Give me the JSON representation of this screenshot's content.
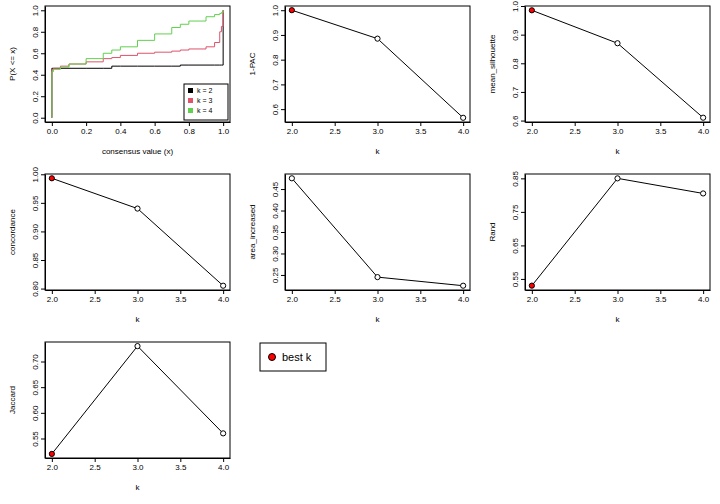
{
  "chart_data": [
    {
      "type": "line",
      "line_style": "step",
      "xlabel": "consensus value (x)",
      "ylabel": "P(X <= x)",
      "x": [
        0,
        0,
        0.01,
        0.05,
        0.1,
        0.2,
        0.3,
        0.35,
        0.4,
        0.5,
        0.6,
        0.7,
        0.75,
        0.8,
        0.9,
        0.95,
        0.98,
        0.99,
        1
      ],
      "series": [
        {
          "name": "k = 2",
          "color": "#000000",
          "values": [
            0,
            0.46,
            0.46,
            0.46,
            0.46,
            0.46,
            0.46,
            0.48,
            0.48,
            0.48,
            0.48,
            0.48,
            0.49,
            0.49,
            0.49,
            0.49,
            0.49,
            0.49,
            1
          ]
        },
        {
          "name": "k = 3",
          "color": "#DF536B",
          "values": [
            0,
            0.45,
            0.46,
            0.48,
            0.5,
            0.52,
            0.55,
            0.56,
            0.58,
            0.6,
            0.61,
            0.62,
            0.63,
            0.64,
            0.66,
            0.7,
            0.8,
            0.85,
            1
          ]
        },
        {
          "name": "k = 4",
          "color": "#61D04F",
          "values": [
            0,
            0.43,
            0.45,
            0.47,
            0.5,
            0.55,
            0.6,
            0.63,
            0.66,
            0.72,
            0.78,
            0.84,
            0.87,
            0.9,
            0.94,
            0.96,
            0.97,
            0.98,
            1
          ]
        }
      ],
      "xlim": [
        -0.04,
        1.04
      ],
      "xticks": [
        {
          "value": 0,
          "label": "0.0"
        },
        0.2,
        0.4,
        0.6,
        0.8,
        {
          "value": 1,
          "label": "1.0"
        }
      ],
      "ylim": [
        -0.04,
        1.04
      ],
      "yticks": [
        {
          "value": 0,
          "label": "0.0"
        },
        0.2,
        0.4,
        0.6,
        0.8,
        {
          "value": 1,
          "label": "1.0"
        }
      ],
      "legend": "bottomright"
    },
    {
      "type": "line",
      "marker": "circle",
      "color": "#000000",
      "xlabel": "k",
      "ylabel": "1-PAC",
      "x": [
        2,
        3,
        4
      ],
      "values": [
        1.0,
        0.885,
        0.565
      ],
      "colors": [
        "#FF0000",
        "#FFFFFF",
        "#FFFFFF"
      ],
      "xlim": [
        1.92,
        4.08
      ],
      "xticks": [
        {
          "value": 2,
          "label": "2.0"
        },
        2.5,
        {
          "value": 3,
          "label": "3.0"
        },
        3.5,
        {
          "value": 4,
          "label": "4.0"
        }
      ],
      "ylim": [
        0.548,
        1.017
      ],
      "yticks": [
        0.6,
        0.7,
        0.8,
        0.9,
        {
          "value": 1,
          "label": "1.0"
        }
      ]
    },
    {
      "type": "line",
      "marker": "circle",
      "color": "#000000",
      "xlabel": "k",
      "ylabel": "mean_silhouette",
      "x": [
        2,
        3,
        4
      ],
      "values": [
        0.985,
        0.87,
        0.61
      ],
      "colors": [
        "#FF0000",
        "#FFFFFF",
        "#FFFFFF"
      ],
      "xlim": [
        1.92,
        4.08
      ],
      "xticks": [
        {
          "value": 2,
          "label": "2.0"
        },
        2.5,
        {
          "value": 3,
          "label": "3.0"
        },
        3.5,
        {
          "value": 4,
          "label": "4.0"
        }
      ],
      "ylim": [
        0.595,
        1.0
      ],
      "yticks": [
        0.6,
        0.7,
        0.8,
        0.9,
        {
          "value": 1,
          "label": "1.0"
        }
      ]
    },
    {
      "type": "line",
      "marker": "circle",
      "color": "#000000",
      "xlabel": "k",
      "ylabel": "concordance",
      "x": [
        2,
        3,
        4
      ],
      "values": [
        0.993,
        0.94,
        0.805
      ],
      "colors": [
        "#FF0000",
        "#FFFFFF",
        "#FFFFFF"
      ],
      "xlim": [
        1.92,
        4.08
      ],
      "xticks": [
        {
          "value": 2,
          "label": "2.0"
        },
        2.5,
        {
          "value": 3,
          "label": "3.0"
        },
        3.5,
        {
          "value": 4,
          "label": "4.0"
        }
      ],
      "ylim": [
        0.7975,
        1.0005
      ],
      "yticks": [
        {
          "value": 0.8,
          "label": "0.80"
        },
        0.85,
        {
          "value": 0.9,
          "label": "0.90"
        },
        0.95,
        {
          "value": 1,
          "label": "1.00"
        }
      ]
    },
    {
      "type": "line",
      "marker": "circle",
      "color": "#000000",
      "xlabel": "k",
      "ylabel": "area_increased",
      "x": [
        2,
        3,
        4
      ],
      "values": [
        0.475,
        0.245,
        0.225
      ],
      "colors": [
        "#FFFFFF",
        "#FFFFFF",
        "#FFFFFF"
      ],
      "xlim": [
        1.92,
        4.08
      ],
      "xticks": [
        {
          "value": 2,
          "label": "2.0"
        },
        2.5,
        {
          "value": 3,
          "label": "3.0"
        },
        3.5,
        {
          "value": 4,
          "label": "4.0"
        }
      ],
      "ylim": [
        0.215,
        0.485
      ],
      "yticks": [
        0.25,
        {
          "value": 0.3,
          "label": "0.30"
        },
        0.35,
        {
          "value": 0.4,
          "label": "0.40"
        },
        0.45
      ]
    },
    {
      "type": "line",
      "marker": "circle",
      "color": "#000000",
      "xlabel": "k",
      "ylabel": "Rand",
      "x": [
        2,
        3,
        4
      ],
      "values": [
        0.53,
        0.85,
        0.805
      ],
      "colors": [
        "#FF0000",
        "#FFFFFF",
        "#FFFFFF"
      ],
      "xlim": [
        1.92,
        4.08
      ],
      "xticks": [
        {
          "value": 2,
          "label": "2.0"
        },
        2.5,
        {
          "value": 3,
          "label": "3.0"
        },
        3.5,
        {
          "value": 4,
          "label": "4.0"
        }
      ],
      "ylim": [
        0.517,
        0.863
      ],
      "yticks": [
        0.55,
        0.65,
        0.75,
        0.85
      ]
    },
    {
      "type": "line",
      "marker": "circle",
      "color": "#000000",
      "xlabel": "k",
      "ylabel": "Jaccard",
      "x": [
        2,
        3,
        4
      ],
      "values": [
        0.52,
        0.73,
        0.56
      ],
      "colors": [
        "#FF0000",
        "#FFFFFF",
        "#FFFFFF"
      ],
      "xlim": [
        1.92,
        4.08
      ],
      "xticks": [
        {
          "value": 2,
          "label": "2.0"
        },
        2.5,
        {
          "value": 3,
          "label": "3.0"
        },
        3.5,
        {
          "value": 4,
          "label": "4.0"
        }
      ],
      "ylim": [
        0.512,
        0.738
      ],
      "yticks": [
        0.55,
        {
          "value": 0.6,
          "label": "0.60"
        },
        0.65,
        {
          "value": 0.7,
          "label": "0.70"
        }
      ]
    }
  ],
  "annotation": {
    "text": "best k",
    "color": "#FF0000"
  }
}
